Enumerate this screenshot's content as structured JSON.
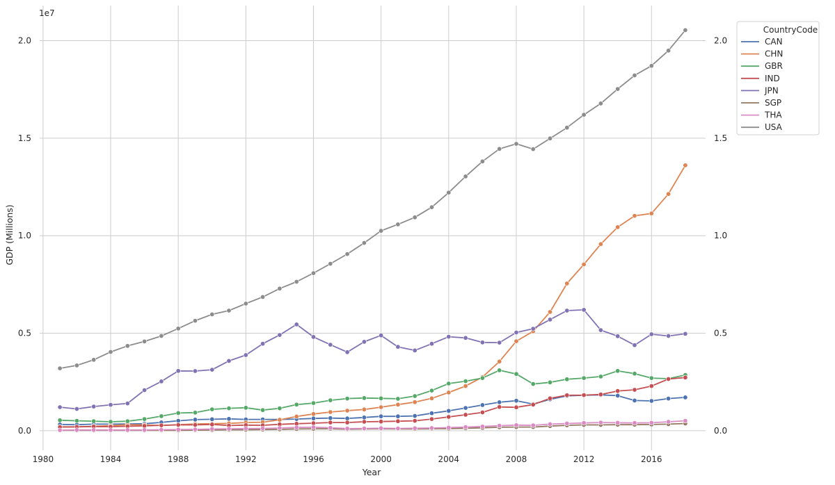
{
  "chart_data": {
    "type": "line",
    "title": "",
    "xlabel": "Year",
    "ylabel": "GDP (Millions)",
    "offset_text": "1e7",
    "xlim": [
      1979.8,
      2019.2
    ],
    "ylim": [
      -0.1,
      2.18
    ],
    "y_scale": 10000000,
    "x_ticks": [
      "1980",
      "1984",
      "1988",
      "1992",
      "1996",
      "2000",
      "2004",
      "2008",
      "2012",
      "2016"
    ],
    "y_ticks": [
      "0.0",
      "0.5",
      "1.0",
      "1.5",
      "2.0"
    ],
    "y_tick_values": [
      0,
      0.5,
      1.0,
      1.5,
      2.0
    ],
    "grid": true,
    "legend": {
      "title": "CountryCode",
      "position": "outside-top-right"
    },
    "x": [
      1981,
      1982,
      1983,
      1984,
      1985,
      1986,
      1987,
      1988,
      1989,
      1990,
      1991,
      1992,
      1993,
      1994,
      1995,
      1996,
      1997,
      1998,
      1999,
      2000,
      2001,
      2002,
      2003,
      2004,
      2005,
      2006,
      2007,
      2008,
      2009,
      2010,
      2011,
      2012,
      2013,
      2014,
      2015,
      2016,
      2017,
      2018
    ],
    "series": [
      {
        "name": "CAN",
        "color": "#4c72b0",
        "values": [
          0.032,
          0.031,
          0.034,
          0.034,
          0.035,
          0.036,
          0.043,
          0.051,
          0.057,
          0.059,
          0.061,
          0.058,
          0.058,
          0.058,
          0.06,
          0.063,
          0.065,
          0.063,
          0.068,
          0.074,
          0.074,
          0.076,
          0.09,
          0.102,
          0.117,
          0.132,
          0.146,
          0.154,
          0.137,
          0.161,
          0.179,
          0.182,
          0.184,
          0.18,
          0.155,
          0.153,
          0.165,
          0.171
        ]
      },
      {
        "name": "CHN",
        "color": "#dd8452",
        "values": [
          0.02,
          0.02,
          0.023,
          0.026,
          0.031,
          0.03,
          0.027,
          0.031,
          0.035,
          0.036,
          0.038,
          0.042,
          0.044,
          0.056,
          0.073,
          0.086,
          0.096,
          0.103,
          0.109,
          0.121,
          0.134,
          0.147,
          0.166,
          0.196,
          0.229,
          0.275,
          0.355,
          0.459,
          0.51,
          0.609,
          0.755,
          0.853,
          0.957,
          1.044,
          1.102,
          1.114,
          1.214,
          1.361
        ]
      },
      {
        "name": "GBR",
        "color": "#55a868",
        "values": [
          0.054,
          0.051,
          0.049,
          0.046,
          0.049,
          0.06,
          0.075,
          0.091,
          0.093,
          0.11,
          0.115,
          0.118,
          0.106,
          0.115,
          0.134,
          0.142,
          0.156,
          0.165,
          0.168,
          0.166,
          0.164,
          0.178,
          0.206,
          0.242,
          0.254,
          0.27,
          0.31,
          0.291,
          0.24,
          0.248,
          0.264,
          0.27,
          0.278,
          0.307,
          0.293,
          0.27,
          0.267,
          0.286
        ]
      },
      {
        "name": "IND",
        "color": "#c44e52",
        "values": [
          0.019,
          0.02,
          0.022,
          0.021,
          0.023,
          0.025,
          0.028,
          0.03,
          0.03,
          0.032,
          0.027,
          0.029,
          0.028,
          0.033,
          0.036,
          0.039,
          0.042,
          0.042,
          0.046,
          0.047,
          0.049,
          0.051,
          0.06,
          0.071,
          0.082,
          0.094,
          0.122,
          0.12,
          0.134,
          0.166,
          0.182,
          0.183,
          0.186,
          0.204,
          0.21,
          0.229,
          0.265,
          0.273
        ]
      },
      {
        "name": "JPN",
        "color": "#8172b3",
        "values": [
          0.121,
          0.112,
          0.124,
          0.133,
          0.14,
          0.208,
          0.253,
          0.307,
          0.306,
          0.313,
          0.358,
          0.388,
          0.446,
          0.491,
          0.545,
          0.481,
          0.441,
          0.403,
          0.456,
          0.489,
          0.43,
          0.412,
          0.446,
          0.482,
          0.476,
          0.453,
          0.452,
          0.504,
          0.523,
          0.57,
          0.616,
          0.62,
          0.516,
          0.485,
          0.439,
          0.495,
          0.486,
          0.497
        ]
      },
      {
        "name": "SGP",
        "color": "#937860",
        "values": [
          0.002,
          0.002,
          0.002,
          0.002,
          0.002,
          0.002,
          0.002,
          0.002,
          0.003,
          0.004,
          0.005,
          0.005,
          0.006,
          0.007,
          0.009,
          0.01,
          0.01,
          0.008,
          0.009,
          0.01,
          0.009,
          0.009,
          0.01,
          0.011,
          0.013,
          0.015,
          0.018,
          0.019,
          0.019,
          0.024,
          0.028,
          0.03,
          0.03,
          0.031,
          0.031,
          0.032,
          0.034,
          0.037
        ]
      },
      {
        "name": "THA",
        "color": "#da8bc3",
        "values": [
          0.003,
          0.004,
          0.004,
          0.004,
          0.004,
          0.004,
          0.005,
          0.006,
          0.007,
          0.009,
          0.01,
          0.011,
          0.012,
          0.014,
          0.017,
          0.018,
          0.015,
          0.011,
          0.012,
          0.013,
          0.012,
          0.013,
          0.014,
          0.016,
          0.019,
          0.022,
          0.026,
          0.029,
          0.028,
          0.034,
          0.037,
          0.04,
          0.042,
          0.041,
          0.04,
          0.041,
          0.046,
          0.051
        ]
      },
      {
        "name": "USA",
        "color": "#8c8c8c",
        "values": [
          0.32,
          0.335,
          0.364,
          0.404,
          0.435,
          0.458,
          0.486,
          0.524,
          0.564,
          0.597,
          0.616,
          0.652,
          0.686,
          0.729,
          0.764,
          0.808,
          0.856,
          0.906,
          0.963,
          1.025,
          1.058,
          1.094,
          1.146,
          1.221,
          1.304,
          1.381,
          1.445,
          1.471,
          1.444,
          1.499,
          1.554,
          1.62,
          1.678,
          1.752,
          1.822,
          1.871,
          1.949,
          2.054
        ]
      }
    ]
  }
}
